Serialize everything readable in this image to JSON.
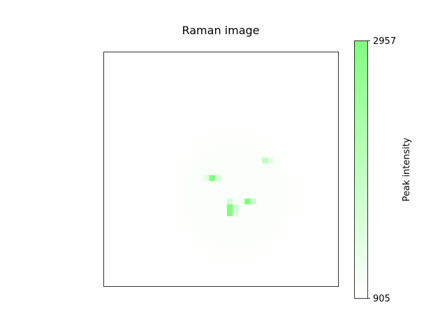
{
  "chart_data": {
    "type": "heatmap",
    "title": "Raman image",
    "xlabel": "",
    "ylabel": "",
    "grid": false,
    "axes_ticks": false,
    "colormap": {
      "low": "#ffffff",
      "high": "#80ff80"
    },
    "colorbar": {
      "label": "Peak intensity",
      "vmin": 905,
      "vmax": 2957,
      "tick_labels": [
        "905",
        "2957"
      ],
      "position": "right"
    },
    "grid_size": [
      40,
      40
    ],
    "background_value": 905,
    "blob": {
      "center_col": 22,
      "center_row": 24,
      "radius_cols": 11.5,
      "radius_rows": 12,
      "value": 990
    },
    "hotspots": [
      {
        "col": 18,
        "row": 21,
        "value": 2957
      },
      {
        "col": 17,
        "row": 21,
        "value": 1380
      },
      {
        "col": 19,
        "row": 21,
        "value": 1600
      },
      {
        "col": 27,
        "row": 18,
        "value": 1900
      },
      {
        "col": 28,
        "row": 18,
        "value": 1350
      },
      {
        "col": 24,
        "row": 25,
        "value": 2957
      },
      {
        "col": 25,
        "row": 25,
        "value": 1750
      },
      {
        "col": 21,
        "row": 26,
        "value": 2957
      },
      {
        "col": 21,
        "row": 27,
        "value": 2957
      },
      {
        "col": 22,
        "row": 26,
        "value": 1700
      },
      {
        "col": 22,
        "row": 27,
        "value": 1500
      },
      {
        "col": 21,
        "row": 25,
        "value": 1600
      }
    ]
  }
}
